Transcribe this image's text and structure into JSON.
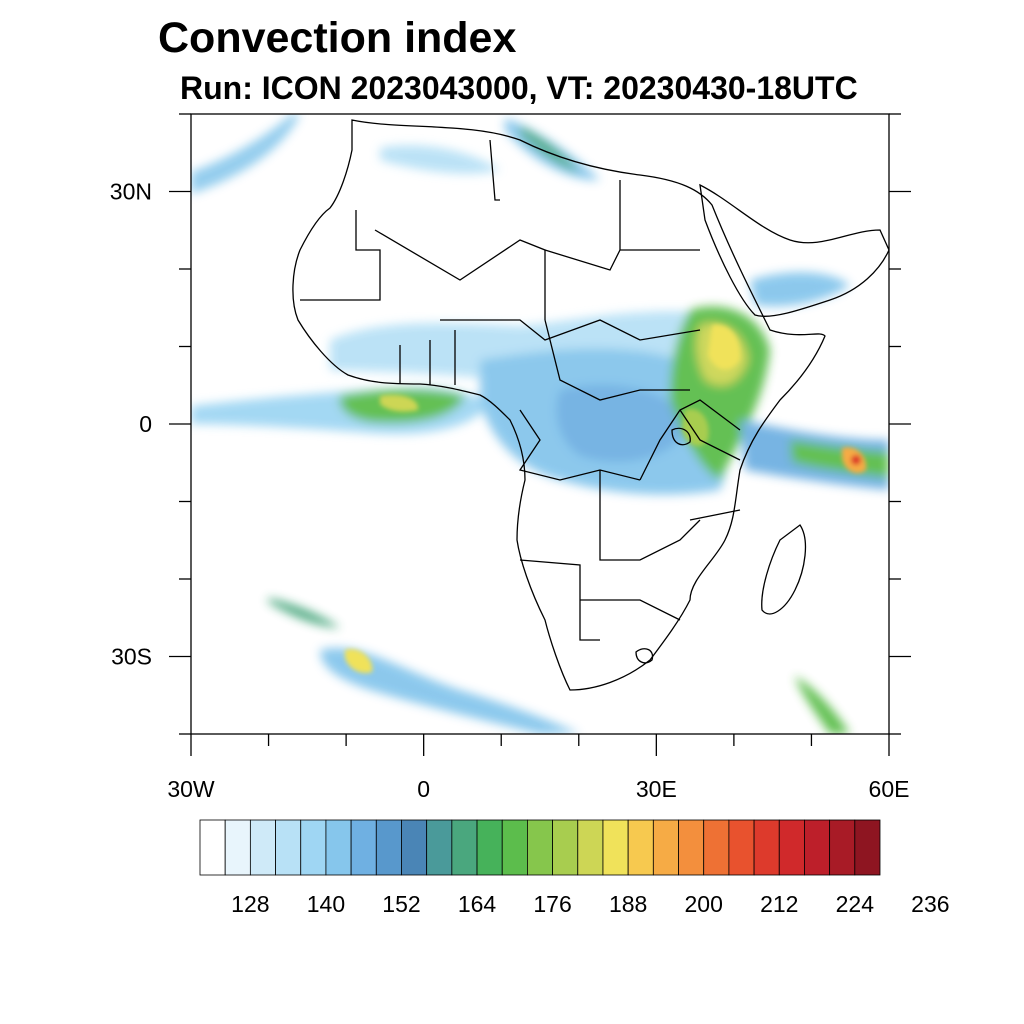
{
  "title": "Convection index",
  "subtitle": "Run: ICON 2023043000,  VT: 20230430-18UTC",
  "map": {
    "lon_range": [
      -30,
      60
    ],
    "lat_range": [
      -40,
      40
    ],
    "x_ticks": [
      {
        "lon": -30,
        "label": "30W"
      },
      {
        "lon": 0,
        "label": "0"
      },
      {
        "lon": 30,
        "label": "30E"
      },
      {
        "lon": 60,
        "label": "60E"
      }
    ],
    "y_ticks": [
      {
        "lat": 30,
        "label": "30N"
      },
      {
        "lat": 0,
        "label": "0"
      },
      {
        "lat": -30,
        "label": "30S"
      }
    ]
  },
  "colorbar": {
    "colors": [
      "#ffffff",
      "#e8f5fc",
      "#cfeaf8",
      "#b8e1f6",
      "#9fd6f3",
      "#86c6ec",
      "#6fb0e2",
      "#5898cc",
      "#4a85b6",
      "#4a9a9a",
      "#4aa77e",
      "#46b25a",
      "#5cbd4c",
      "#86c64c",
      "#a8cd4f",
      "#cdd655",
      "#f0e25a",
      "#f7c94f",
      "#f6ab45",
      "#f38f3d",
      "#ee7134",
      "#e8522e",
      "#dd3a2c",
      "#d0292b",
      "#bd1f2a",
      "#a81b26",
      "#8e1521"
    ],
    "labels": [
      "128",
      "140",
      "152",
      "164",
      "176",
      "188",
      "200",
      "212",
      "224",
      "236"
    ]
  }
}
